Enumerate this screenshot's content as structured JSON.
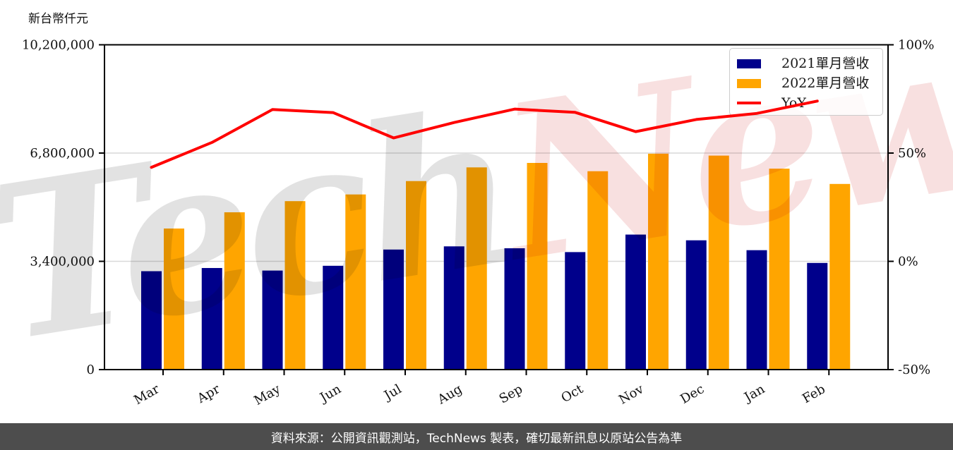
{
  "y_axis_title": "新台幣仟元",
  "footer_text": "資料來源：公開資訊觀測站，TechNews 製表，確切最新訊息以原站公告為準",
  "watermark": {
    "part1": "Tech",
    "part2": "News"
  },
  "colors": {
    "bar_2021": "#00008B",
    "bar_2022": "#FFA500",
    "yoy_line": "#FF0000",
    "gridline": "#D9D9D9",
    "axis": "#000000",
    "footer_bg": "#4D4D4D"
  },
  "chart_data": {
    "type": "bar",
    "title": "",
    "categories": [
      "Mar",
      "Apr",
      "May",
      "Jun",
      "Jul",
      "Aug",
      "Sep",
      "Oct",
      "Nov",
      "Dec",
      "Jan",
      "Feb"
    ],
    "series": [
      {
        "name": "2021單月營收",
        "type": "bar",
        "yaxis": "left",
        "color": "#00008B",
        "values": [
          3090000,
          3190000,
          3110000,
          3260000,
          3770000,
          3870000,
          3810000,
          3690000,
          4240000,
          4060000,
          3750000,
          3350000
        ]
      },
      {
        "name": "2022單月營收",
        "type": "bar",
        "yaxis": "left",
        "color": "#FFA500",
        "values": [
          4430000,
          4940000,
          5290000,
          5500000,
          5920000,
          6350000,
          6490000,
          6230000,
          6780000,
          6720000,
          6310000,
          5830000
        ]
      },
      {
        "name": "YoY",
        "type": "line",
        "yaxis": "right",
        "color": "#FF0000",
        "values": [
          43.4,
          54.9,
          70.1,
          68.7,
          57.0,
          64.1,
          70.3,
          68.8,
          59.9,
          65.5,
          68.3,
          74.0
        ]
      }
    ],
    "left_axis": {
      "title": "新台幣仟元",
      "unit": "NT$ thousand",
      "tick_labels": [
        "0",
        "3,400,000",
        "6,800,000",
        "10,200,000"
      ],
      "tick_values": [
        0,
        3400000,
        6800000,
        10200000
      ],
      "range": [
        0,
        10200000
      ]
    },
    "right_axis": {
      "unit": "percent",
      "tick_labels": [
        "-50%",
        "0%",
        "50%",
        "100%"
      ],
      "tick_values": [
        -50,
        0,
        50,
        100
      ],
      "range": [
        -50,
        100
      ]
    },
    "legend_position": "top-right",
    "grid": true
  }
}
